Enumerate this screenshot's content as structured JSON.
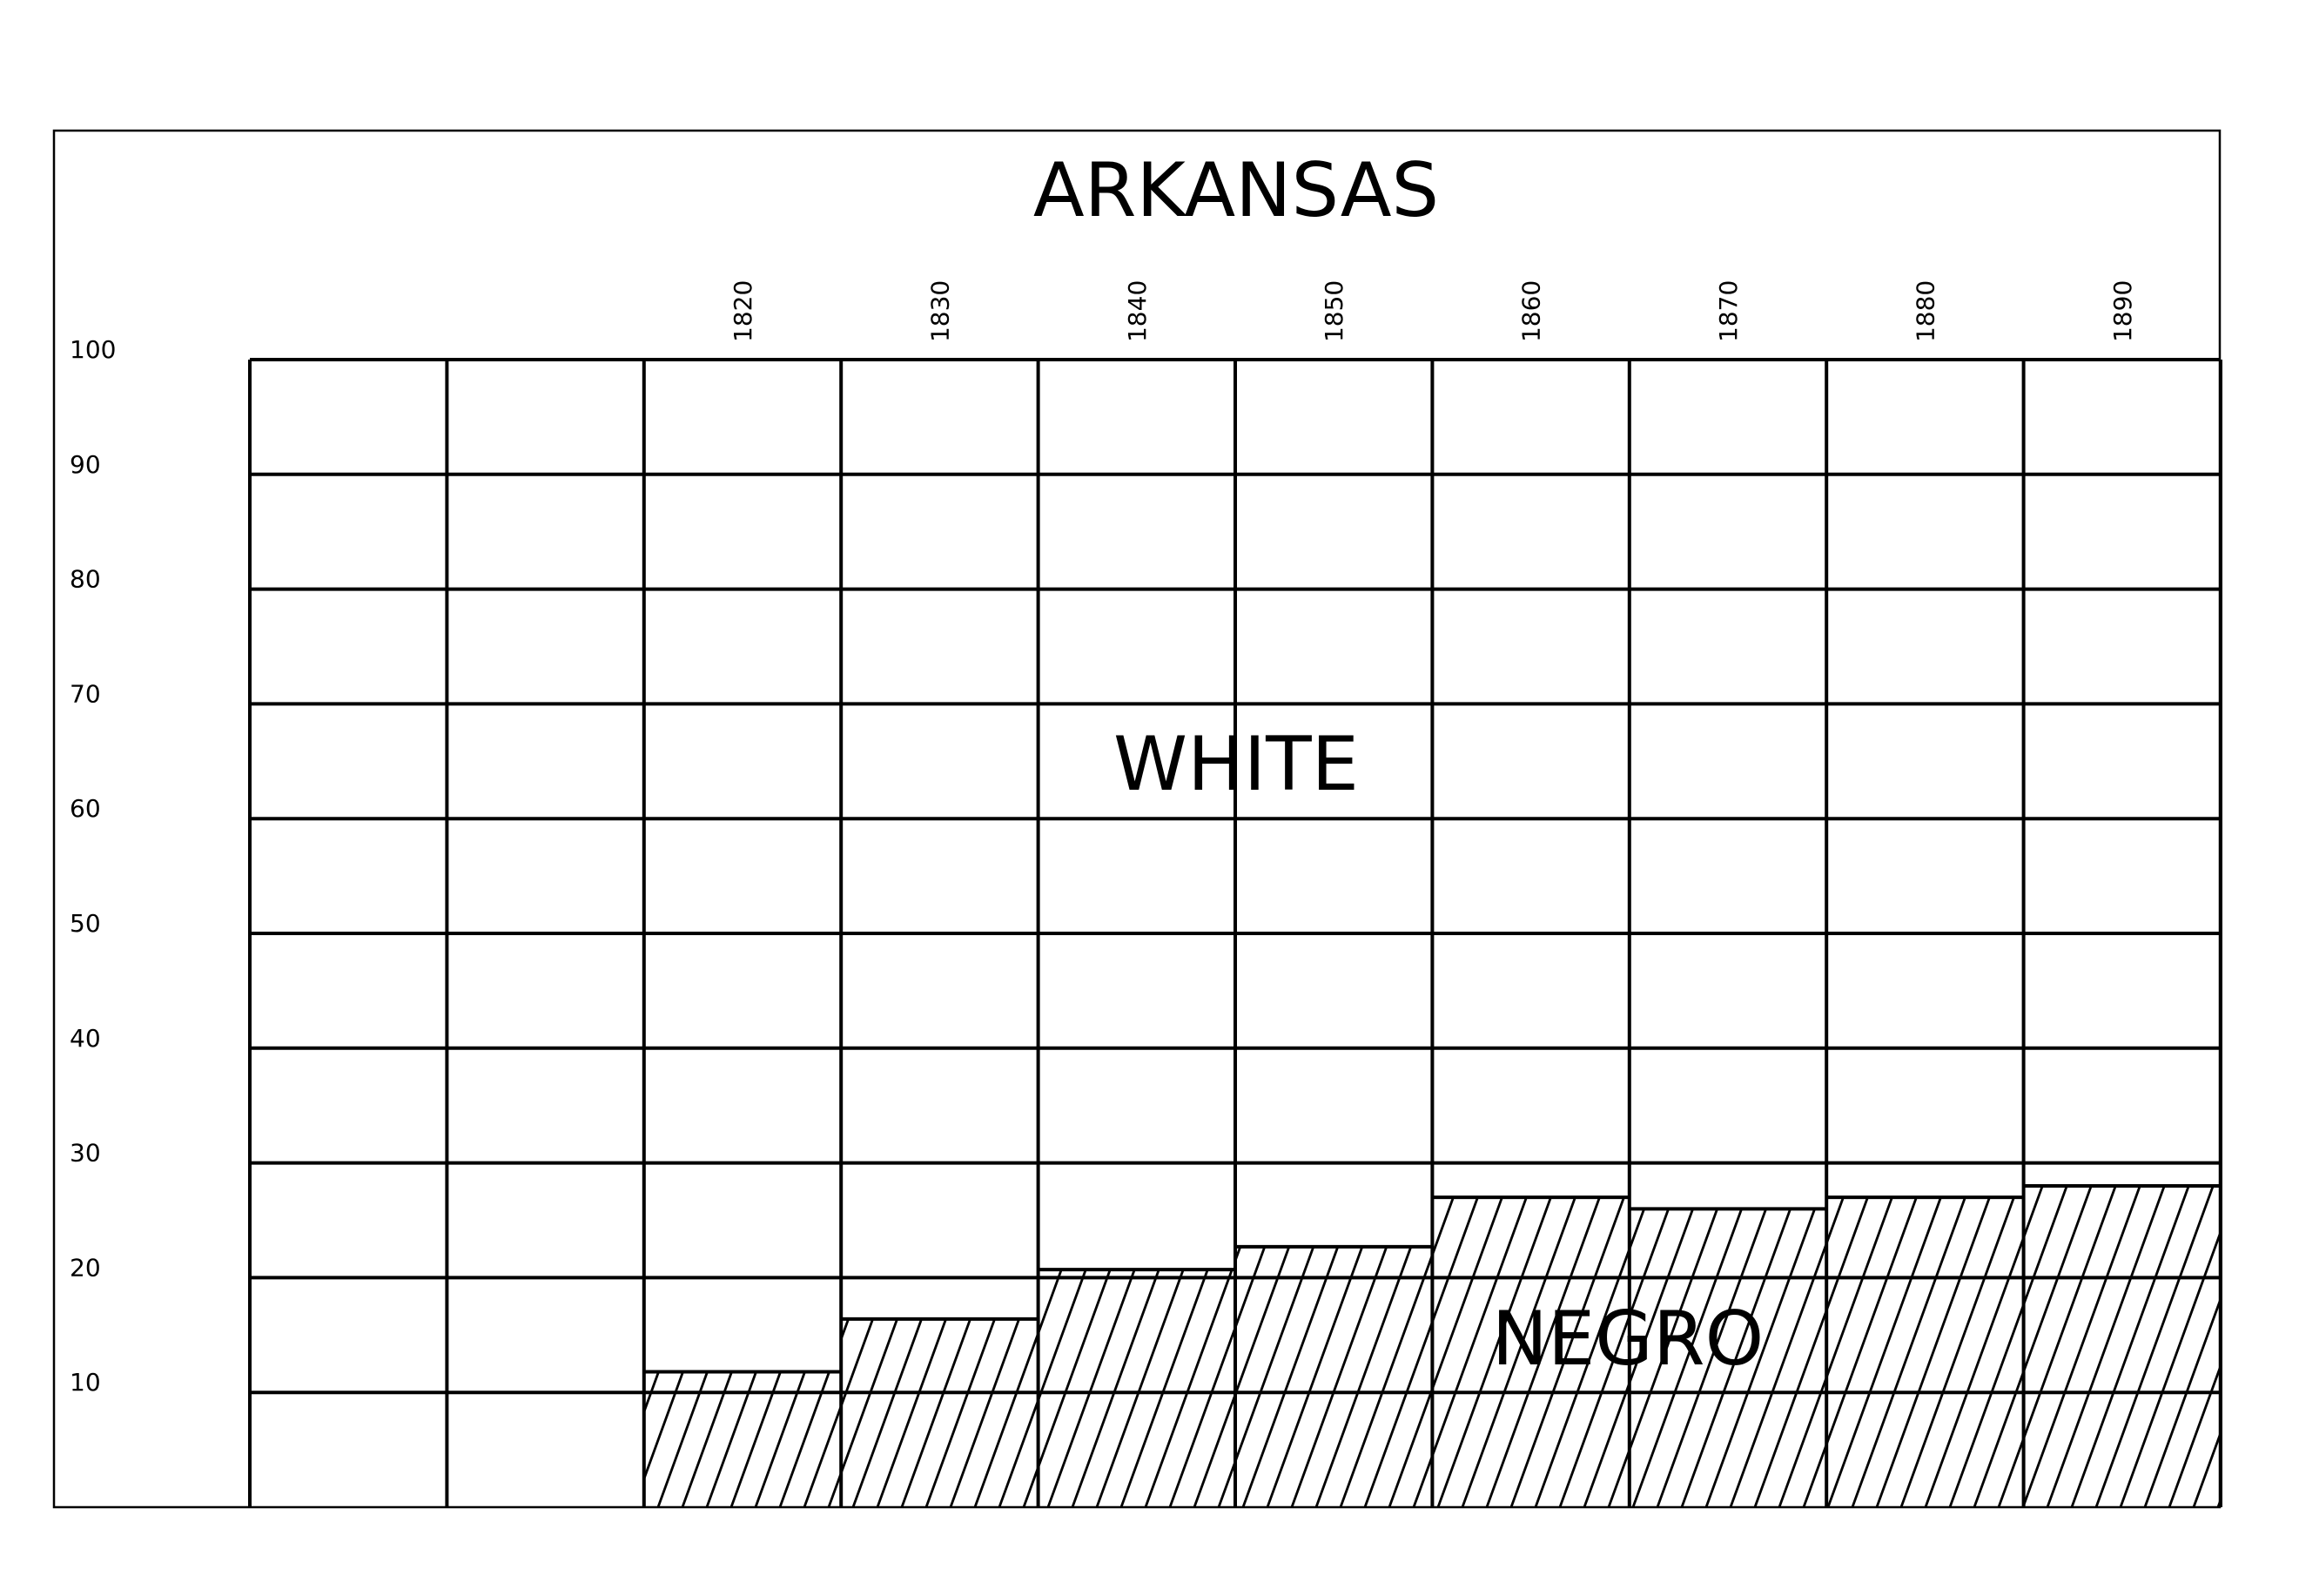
{
  "chart_data": {
    "type": "bar",
    "title": "ARKANSAS",
    "region_labels": {
      "upper": "WHITE",
      "lower": "NEGRO"
    },
    "x": [
      "",
      "",
      "1820",
      "1830",
      "1840",
      "1850",
      "1860",
      "1870",
      "1880",
      "1890"
    ],
    "categories": [
      "1820",
      "1830",
      "1840",
      "1850",
      "1860",
      "1870",
      "1880",
      "1890"
    ],
    "values": [
      11.8,
      16.4,
      20.7,
      22.7,
      27.0,
      26.0,
      27.0,
      28.0
    ],
    "y_ticks": [
      "100",
      "90",
      "80",
      "70",
      "60",
      "50",
      "40",
      "30",
      "20",
      "10"
    ],
    "ylim": [
      0,
      100
    ],
    "grid": true
  }
}
